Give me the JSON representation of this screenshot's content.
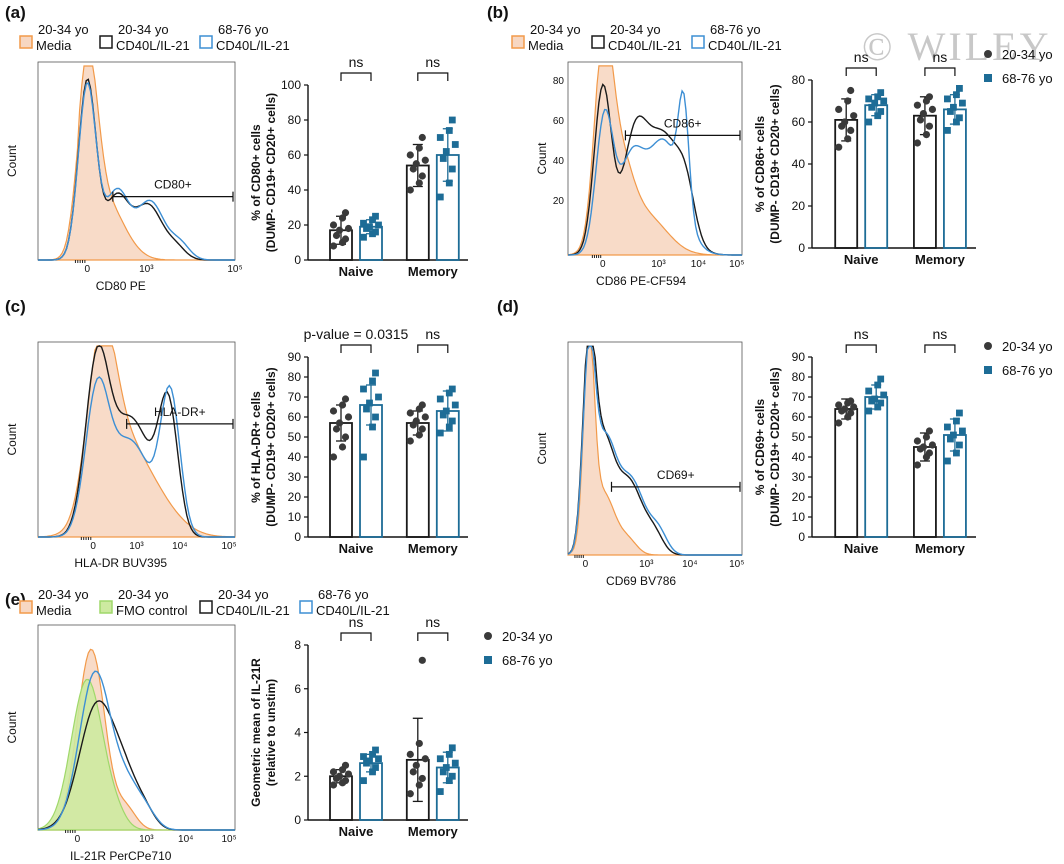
{
  "watermark": "© WILEY",
  "colors": {
    "media_fill": "#f7d7c2",
    "media_line": "#f29a4a",
    "fmo_fill": "#cdeaa0",
    "fmo_line": "#9fd86a",
    "young_line": "#1a1a1a",
    "old_line": "#3d8fd4",
    "young_dot": "#3a3a3a",
    "old_dot": "#1d6c96"
  },
  "legend_groups": {
    "young": "20-34 yo",
    "old": "68-76 yo"
  },
  "chart_data": [
    {
      "type": "histogram",
      "panel": "(a)",
      "legend": [
        {
          "line1": "20-34 yo",
          "line2": "Media",
          "style": "media"
        },
        {
          "line1": "20-34 yo",
          "line2": "CD40L/IL-21",
          "style": "young"
        },
        {
          "line1": "68-76 yo",
          "line2": "CD40L/IL-21",
          "style": "old"
        }
      ],
      "ylabel": "Count",
      "xlabel": "CD80 PE",
      "gate_label": "CD80+",
      "y_ticks": [],
      "x_tick_labels": [
        "0",
        "10³",
        "10⁵"
      ]
    },
    {
      "type": "bar",
      "panel": "(a)",
      "ylabel_lines": [
        "% of CD80+ cells",
        "(DUMP- CD19+ CD20+ cells)"
      ],
      "categories": [
        "Naive",
        "Memory"
      ],
      "ylim": [
        0,
        100
      ],
      "yticks": [
        0,
        20,
        40,
        60,
        80,
        100
      ],
      "series": [
        {
          "name": "20-34 yo",
          "values": [
            17,
            54
          ],
          "sd": [
            8,
            12
          ],
          "points": [
            [
              8,
              10,
              12,
              14,
              17,
              18,
              20,
              24,
              27
            ],
            [
              40,
              44,
              48,
              52,
              55,
              57,
              60,
              64,
              70
            ]
          ]
        },
        {
          "name": "68-76 yo",
          "values": [
            19,
            60
          ],
          "sd": [
            4,
            15
          ],
          "points": [
            [
              13,
              15,
              16,
              18,
              19,
              20,
              21,
              23,
              25
            ],
            [
              36,
              44,
              52,
              58,
              62,
              66,
              70,
              74,
              80
            ]
          ]
        }
      ],
      "comparisons": [
        "ns",
        "ns"
      ]
    },
    {
      "type": "histogram",
      "panel": "(b)",
      "legend": [
        {
          "line1": "20-34 yo",
          "line2": "Media",
          "style": "media"
        },
        {
          "line1": "20-34 yo",
          "line2": "CD40L/IL-21",
          "style": "young"
        },
        {
          "line1": "68-76 yo",
          "line2": "CD40L/IL-21",
          "style": "old"
        }
      ],
      "ylabel": "Count",
      "xlabel": "CD86 PE-CF594",
      "gate_label": "CD86+",
      "y_ticks": [
        "80",
        "60",
        "40",
        "20"
      ],
      "x_tick_labels": [
        "0",
        "10³",
        "10⁴",
        "10⁵"
      ]
    },
    {
      "type": "bar",
      "panel": "(b)",
      "ylabel_lines": [
        "% of CD86+ cells",
        "(DUMP- CD19+ CD20+ cells)"
      ],
      "categories": [
        "Naive",
        "Memory"
      ],
      "ylim": [
        0,
        80
      ],
      "yticks": [
        0,
        20,
        40,
        60,
        80
      ],
      "series": [
        {
          "name": "20-34 yo",
          "values": [
            61,
            63
          ],
          "sd": [
            10,
            9
          ],
          "points": [
            [
              48,
              52,
              56,
              58,
              60,
              63,
              66,
              70,
              75
            ],
            [
              50,
              54,
              58,
              61,
              64,
              66,
              68,
              70,
              72
            ]
          ]
        },
        {
          "name": "68-76 yo",
          "values": [
            68,
            66
          ],
          "sd": [
            5,
            7
          ],
          "points": [
            [
              60,
              63,
              65,
              67,
              69,
              70,
              71,
              72,
              74
            ],
            [
              56,
              60,
              62,
              65,
              67,
              69,
              71,
              73,
              76
            ]
          ]
        }
      ],
      "comparisons": [
        "ns",
        "ns"
      ],
      "legend": [
        "20-34 yo",
        "68-76 yo"
      ]
    },
    {
      "type": "histogram",
      "panel": "(c)",
      "ylabel": "Count",
      "xlabel": "HLA-DR BUV395",
      "gate_label": "HLA-DR+",
      "y_ticks": [],
      "x_tick_labels": [
        "0",
        "10³",
        "10⁴",
        "10⁵"
      ]
    },
    {
      "type": "bar",
      "panel": "(c)",
      "ylabel_lines": [
        "% of HLA-DR+ cells",
        "(DUMP- CD19+ CD20+ cells)"
      ],
      "categories": [
        "Naive",
        "Memory"
      ],
      "ylim": [
        0,
        90
      ],
      "yticks": [
        0,
        10,
        20,
        30,
        40,
        50,
        60,
        70,
        80,
        90
      ],
      "series": [
        {
          "name": "20-34 yo",
          "values": [
            57,
            57
          ],
          "sd": [
            9,
            6
          ],
          "points": [
            [
              40,
              45,
              50,
              54,
              57,
              60,
              63,
              66,
              69
            ],
            [
              48,
              51,
              54,
              56,
              58,
              60,
              62,
              64,
              66
            ]
          ]
        },
        {
          "name": "68-76 yo",
          "values": [
            66,
            63
          ],
          "sd": [
            10,
            10
          ],
          "points": [
            [
              40,
              55,
              60,
              64,
              67,
              70,
              74,
              78,
              82
            ],
            [
              52,
              55,
              58,
              61,
              63,
              66,
              69,
              72,
              74
            ]
          ]
        }
      ],
      "comparisons": [
        "p-value = 0.0315",
        "ns"
      ]
    },
    {
      "type": "histogram",
      "panel": "(d)",
      "ylabel": "Count",
      "xlabel": "CD69 BV786",
      "gate_label": "CD69+",
      "y_ticks": [],
      "x_tick_labels": [
        "0",
        "10³",
        "10⁴",
        "10⁵"
      ]
    },
    {
      "type": "bar",
      "panel": "(d)",
      "ylabel_lines": [
        "% of CD69+ cells",
        "(DUMP- CD19+ CD20+ cells)"
      ],
      "categories": [
        "Naive",
        "Memory"
      ],
      "ylim": [
        0,
        90
      ],
      "yticks": [
        0,
        10,
        20,
        30,
        40,
        50,
        60,
        70,
        80,
        90
      ],
      "series": [
        {
          "name": "20-34 yo",
          "values": [
            64,
            45
          ],
          "sd": [
            5,
            7
          ],
          "points": [
            [
              57,
              60,
              62,
              63,
              64,
              65,
              66,
              67,
              68
            ],
            [
              36,
              40,
              42,
              44,
              45,
              46,
              48,
              50,
              53
            ]
          ]
        },
        {
          "name": "68-76 yo",
          "values": [
            70,
            51
          ],
          "sd": [
            6,
            8
          ],
          "points": [
            [
              63,
              65,
              67,
              68,
              69,
              71,
              73,
              76,
              79
            ],
            [
              38,
              42,
              46,
              49,
              51,
              53,
              55,
              58,
              62
            ]
          ]
        }
      ],
      "comparisons": [
        "ns",
        "ns"
      ],
      "legend": [
        "20-34 yo",
        "68-76 yo"
      ]
    },
    {
      "type": "histogram",
      "panel": "(e)",
      "legend": [
        {
          "line1": "20-34 yo",
          "line2": "Media",
          "style": "media"
        },
        {
          "line1": "20-34 yo",
          "line2": "FMO control",
          "style": "fmo"
        },
        {
          "line1": "20-34 yo",
          "line2": "CD40L/IL-21",
          "style": "young"
        },
        {
          "line1": "68-76 yo",
          "line2": "CD40L/IL-21",
          "style": "old"
        }
      ],
      "ylabel": "Count",
      "xlabel": "IL-21R PerCPe710",
      "y_ticks": [],
      "x_tick_labels": [
        "0",
        "10³",
        "10⁴",
        "10⁵"
      ]
    },
    {
      "type": "bar",
      "panel": "(e)",
      "ylabel_lines": [
        "Geometric mean of IL-21R",
        "(relative to unstim)"
      ],
      "categories": [
        "Naive",
        "Memory"
      ],
      "ylim": [
        0,
        8
      ],
      "yticks": [
        0,
        2,
        4,
        6,
        8
      ],
      "series": [
        {
          "name": "20-34 yo",
          "values": [
            2.0,
            2.75
          ],
          "sd": [
            0.3,
            1.9
          ],
          "points": [
            [
              1.6,
              1.7,
              1.8,
              1.9,
              2.0,
              2.1,
              2.2,
              2.3,
              2.5
            ],
            [
              1.2,
              1.6,
              1.9,
              2.2,
              2.5,
              2.8,
              3.0,
              3.5,
              7.3
            ]
          ]
        },
        {
          "name": "68-76 yo",
          "values": [
            2.6,
            2.4
          ],
          "sd": [
            0.4,
            0.7
          ],
          "points": [
            [
              1.8,
              2.2,
              2.4,
              2.6,
              2.7,
              2.8,
              2.9,
              3.0,
              3.2
            ],
            [
              1.3,
              1.8,
              2.0,
              2.2,
              2.4,
              2.6,
              2.8,
              3.0,
              3.3
            ]
          ]
        }
      ],
      "comparisons": [
        "ns",
        "ns"
      ],
      "legend": [
        "20-34 yo",
        "68-76 yo"
      ]
    }
  ]
}
